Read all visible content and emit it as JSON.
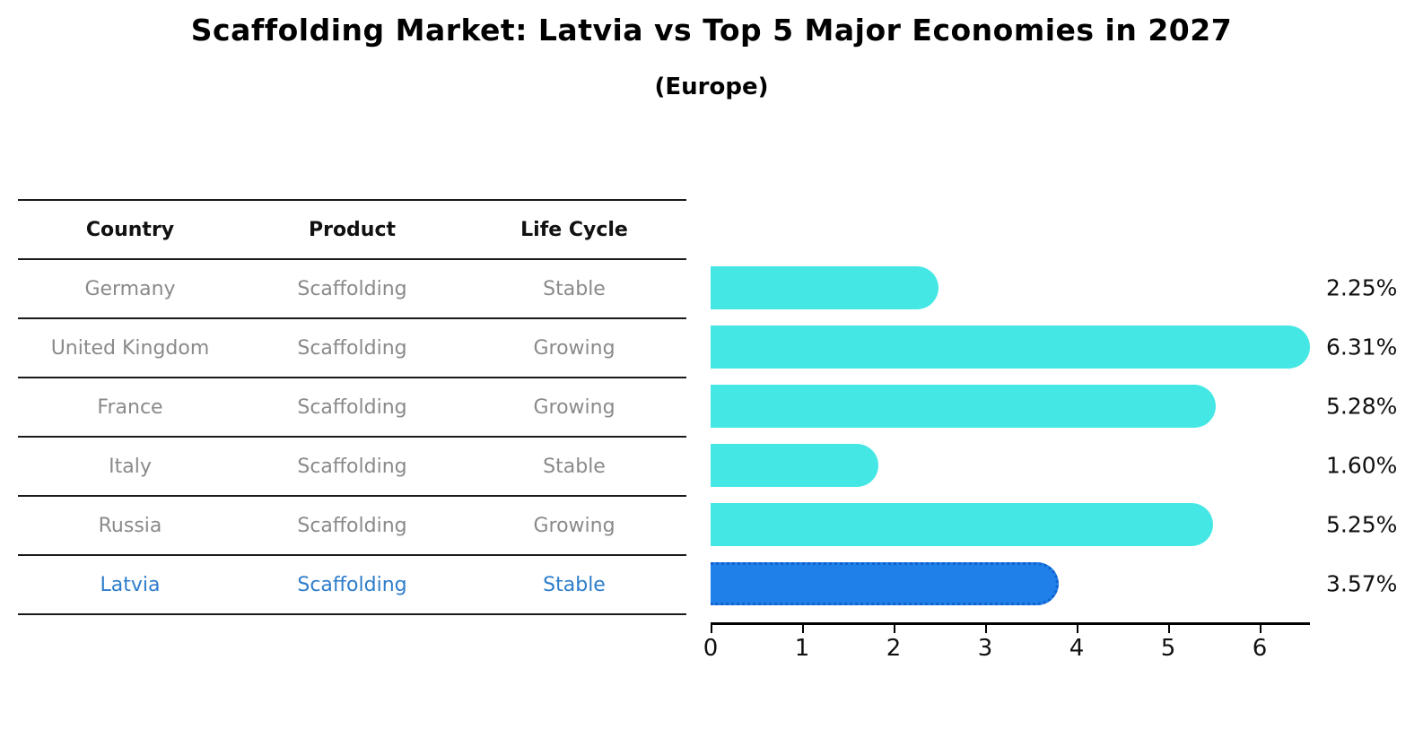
{
  "title": "Scaffolding Market: Latvia vs Top 5 Major Economies in 2027",
  "subtitle": "(Europe)",
  "table": {
    "headers": [
      "Country",
      "Product",
      "Life Cycle"
    ],
    "rows": [
      {
        "country": "Germany",
        "product": "Scaffolding",
        "life_cycle": "Stable",
        "highlight": false
      },
      {
        "country": "United Kingdom",
        "product": "Scaffolding",
        "life_cycle": "Growing",
        "highlight": false
      },
      {
        "country": "France",
        "product": "Scaffolding",
        "life_cycle": "Growing",
        "highlight": false
      },
      {
        "country": "Italy",
        "product": "Scaffolding",
        "life_cycle": "Stable",
        "highlight": false
      },
      {
        "country": "Russia",
        "product": "Scaffolding",
        "life_cycle": "Growing",
        "highlight": false
      },
      {
        "country": "Latvia",
        "product": "Scaffolding",
        "life_cycle": "Stable",
        "highlight": true
      }
    ]
  },
  "chart_data": {
    "type": "bar",
    "orientation": "horizontal",
    "title": "Scaffolding Market: Latvia vs Top 5 Major Economies in 2027",
    "subtitle": "(Europe)",
    "categories": [
      "Germany",
      "United Kingdom",
      "France",
      "Italy",
      "Russia",
      "Latvia"
    ],
    "values": [
      2.25,
      6.31,
      5.28,
      1.6,
      5.25,
      3.57
    ],
    "value_labels": [
      "2.25%",
      "6.31%",
      "5.28%",
      "1.60%",
      "5.25%",
      "3.57%"
    ],
    "x_ticks": [
      0,
      1,
      2,
      3,
      4,
      5,
      6
    ],
    "xlim": [
      0,
      6.55
    ],
    "xlabel": "",
    "ylabel": "",
    "grid": false,
    "legend": false,
    "bar_color": "#45e7e5",
    "highlight_color": "#1e80e8",
    "highlight_border_color": "#1261cf",
    "highlight_index": 5,
    "highlight_text_color": "#2e7dcb"
  }
}
